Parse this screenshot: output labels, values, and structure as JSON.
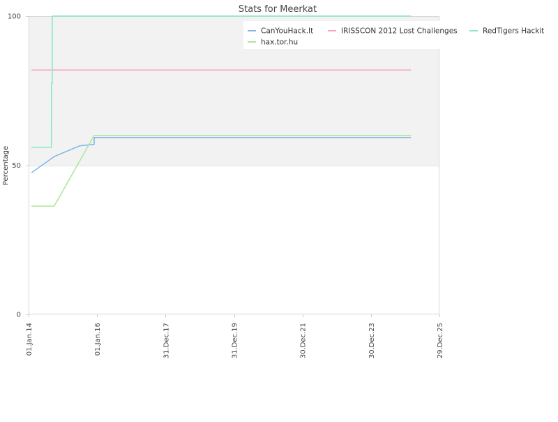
{
  "chart_data": {
    "type": "line",
    "title": "Stats for Meerkat",
    "xlabel": "",
    "ylabel": "Percentage",
    "ylim": [
      0,
      100
    ],
    "yticks": [
      0,
      50,
      100
    ],
    "xlim": [
      "2014-01-01",
      "2025-12-29"
    ],
    "xticks": [
      {
        "date": "2014-01-01",
        "label": "01.Jan.14"
      },
      {
        "date": "2016-01-01",
        "label": "01.Jan.16"
      },
      {
        "date": "2017-12-31",
        "label": "31.Dec.17"
      },
      {
        "date": "2019-12-31",
        "label": "31.Dec.19"
      },
      {
        "date": "2021-12-30",
        "label": "30.Dec.21"
      },
      {
        "date": "2023-12-30",
        "label": "30.Dec.23"
      },
      {
        "date": "2025-12-29",
        "label": "29.Dec.25"
      }
    ],
    "bands": [
      {
        "from": 50,
        "to": 100,
        "color": "#f2f2f2"
      }
    ],
    "grid": false,
    "legend_position": "top-right",
    "series": [
      {
        "name": "CanYouHack.It",
        "color": "#7fb5e8",
        "points": [
          [
            "2014-02-01",
            47.5
          ],
          [
            "2014-10-01",
            52.9
          ],
          [
            "2015-07-01",
            56.5
          ],
          [
            "2015-12-01",
            57.0
          ],
          [
            "2015-12-02",
            59.3
          ],
          [
            "2025-03-01",
            59.3
          ]
        ]
      },
      {
        "name": "IRISSCON 2012 Lost Challenges",
        "color": "#f4a3bb",
        "points": [
          [
            "2014-02-01",
            81.9
          ],
          [
            "2025-03-01",
            81.9
          ]
        ]
      },
      {
        "name": "RedTigers Hackit",
        "color": "#86e8c4",
        "points": [
          [
            "2014-02-01",
            56.0
          ],
          [
            "2014-09-01",
            56.0
          ],
          [
            "2014-09-02",
            77.5
          ],
          [
            "2014-09-10",
            77.5
          ],
          [
            "2014-09-11",
            100
          ],
          [
            "2025-03-01",
            100
          ]
        ]
      },
      {
        "name": "hax.tor.hu",
        "color": "#a8e89a",
        "points": [
          [
            "2014-02-01",
            36.3
          ],
          [
            "2014-10-01",
            36.3
          ],
          [
            "2015-12-01",
            60.0
          ],
          [
            "2025-03-01",
            60.0
          ]
        ]
      }
    ]
  }
}
